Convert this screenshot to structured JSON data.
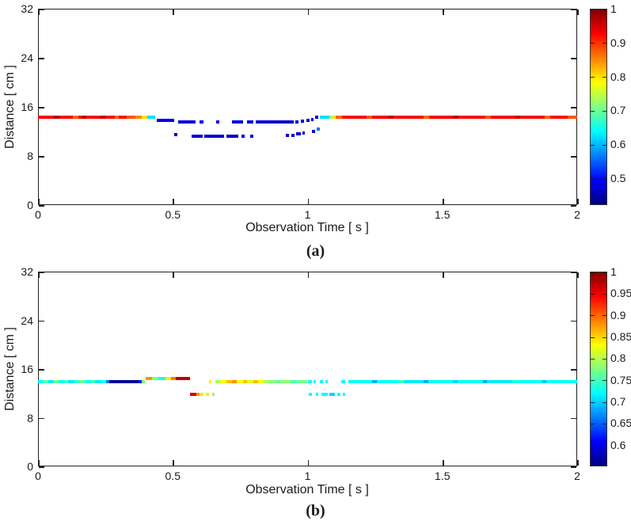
{
  "figure": {
    "background": "#ffffff",
    "axis_color": "#231f20",
    "colormap": "jet"
  },
  "chart_data": [
    {
      "panel": "a",
      "type": "scatter",
      "caption": "(a)",
      "xlabel": "Observation Time [ s ]",
      "ylabel": "Distance [ cm ]",
      "xlim": [
        0,
        2
      ],
      "ylim": [
        0,
        32
      ],
      "xticks": [
        0,
        0.5,
        1,
        1.5,
        2
      ],
      "yticks": [
        0,
        8,
        16,
        24,
        32
      ],
      "colorbar": {
        "min": 0.42,
        "max": 1.0,
        "ticks": [
          1,
          0.9,
          0.8,
          0.7,
          0.6,
          0.5
        ]
      },
      "points_format": [
        "t_start_s",
        "t_end_s",
        "distance_cm",
        "value"
      ],
      "points": [
        [
          0.0,
          0.06,
          14.5,
          0.93
        ],
        [
          0.06,
          0.08,
          14.5,
          0.97
        ],
        [
          0.08,
          0.13,
          14.5,
          0.92
        ],
        [
          0.13,
          0.15,
          14.5,
          0.87
        ],
        [
          0.15,
          0.165,
          14.5,
          0.93
        ],
        [
          0.165,
          0.18,
          14.5,
          0.97
        ],
        [
          0.18,
          0.23,
          14.5,
          0.92
        ],
        [
          0.23,
          0.25,
          14.5,
          0.96
        ],
        [
          0.25,
          0.285,
          14.5,
          0.92
        ],
        [
          0.285,
          0.3,
          14.5,
          0.87
        ],
        [
          0.3,
          0.33,
          14.5,
          0.92
        ],
        [
          0.33,
          0.36,
          14.5,
          0.88
        ],
        [
          0.36,
          0.385,
          14.5,
          0.85
        ],
        [
          0.385,
          0.405,
          14.5,
          0.8
        ],
        [
          0.405,
          0.435,
          14.5,
          0.62
        ],
        [
          0.44,
          0.505,
          13.9,
          0.48
        ],
        [
          0.52,
          0.585,
          13.7,
          0.47
        ],
        [
          0.598,
          0.615,
          13.7,
          0.47
        ],
        [
          0.66,
          0.672,
          13.7,
          0.48
        ],
        [
          0.72,
          0.762,
          13.7,
          0.47
        ],
        [
          0.775,
          0.8,
          13.7,
          0.47
        ],
        [
          0.808,
          0.872,
          13.7,
          0.47
        ],
        [
          0.872,
          0.948,
          13.7,
          0.46
        ],
        [
          0.955,
          0.966,
          13.7,
          0.47
        ],
        [
          0.975,
          0.987,
          13.8,
          0.47
        ],
        [
          0.995,
          1.006,
          13.9,
          0.48
        ],
        [
          1.012,
          1.023,
          14.1,
          0.47
        ],
        [
          1.028,
          1.04,
          14.4,
          0.48
        ],
        [
          1.045,
          1.08,
          14.5,
          0.62
        ],
        [
          1.08,
          1.093,
          14.5,
          0.72
        ],
        [
          1.093,
          1.104,
          14.5,
          0.8
        ],
        [
          1.104,
          1.128,
          14.5,
          0.87
        ],
        [
          1.128,
          1.22,
          14.5,
          0.92
        ],
        [
          1.22,
          1.24,
          14.5,
          0.88
        ],
        [
          1.24,
          1.3,
          14.5,
          0.93
        ],
        [
          1.3,
          1.32,
          14.5,
          0.97
        ],
        [
          1.32,
          1.43,
          14.5,
          0.92
        ],
        [
          1.43,
          1.45,
          14.5,
          0.87
        ],
        [
          1.45,
          1.54,
          14.5,
          0.93
        ],
        [
          1.54,
          1.56,
          14.5,
          0.97
        ],
        [
          1.56,
          1.66,
          14.5,
          0.92
        ],
        [
          1.66,
          1.68,
          14.5,
          0.88
        ],
        [
          1.68,
          1.77,
          14.5,
          0.93
        ],
        [
          1.77,
          1.79,
          14.5,
          0.96
        ],
        [
          1.79,
          1.88,
          14.5,
          0.92
        ],
        [
          1.88,
          1.9,
          14.5,
          0.87
        ],
        [
          1.9,
          1.965,
          14.5,
          0.92
        ],
        [
          1.965,
          2.0,
          14.5,
          0.88
        ],
        [
          0.505,
          0.516,
          11.6,
          0.47
        ],
        [
          0.57,
          0.61,
          11.4,
          0.46
        ],
        [
          0.617,
          0.69,
          11.4,
          0.46
        ],
        [
          0.7,
          0.742,
          11.4,
          0.46
        ],
        [
          0.755,
          0.766,
          11.4,
          0.47
        ],
        [
          0.788,
          0.799,
          11.4,
          0.47
        ],
        [
          0.92,
          0.931,
          11.5,
          0.47
        ],
        [
          0.94,
          0.951,
          11.5,
          0.47
        ],
        [
          0.957,
          0.975,
          11.7,
          0.47
        ],
        [
          0.98,
          0.991,
          11.9,
          0.47
        ],
        [
          1.016,
          1.027,
          12.1,
          0.48
        ],
        [
          1.035,
          1.046,
          12.5,
          0.56
        ]
      ]
    },
    {
      "panel": "b",
      "type": "scatter",
      "caption": "(b)",
      "xlabel": "Observation Time [ s ]",
      "ylabel": "Distance [ cm ]",
      "xlim": [
        0,
        2
      ],
      "ylim": [
        0,
        32
      ],
      "xticks": [
        0,
        0.5,
        1,
        1.5,
        2
      ],
      "yticks": [
        0,
        8,
        16,
        24,
        32
      ],
      "colorbar": {
        "min": 0.55,
        "max": 1.0,
        "ticks": [
          1,
          0.95,
          0.9,
          0.85,
          0.8,
          0.75,
          0.7,
          0.65,
          0.6
        ]
      },
      "points_format": [
        "t_start_s",
        "t_end_s",
        "distance_cm",
        "value"
      ],
      "points": [
        [
          0.0,
          0.022,
          14.1,
          0.72
        ],
        [
          0.022,
          0.037,
          14.1,
          0.76
        ],
        [
          0.037,
          0.06,
          14.1,
          0.71
        ],
        [
          0.06,
          0.076,
          14.1,
          0.77
        ],
        [
          0.076,
          0.1,
          14.1,
          0.72
        ],
        [
          0.1,
          0.112,
          14.1,
          0.76
        ],
        [
          0.112,
          0.136,
          14.1,
          0.71
        ],
        [
          0.136,
          0.152,
          14.1,
          0.74
        ],
        [
          0.152,
          0.172,
          14.1,
          0.77
        ],
        [
          0.172,
          0.196,
          14.1,
          0.72
        ],
        [
          0.196,
          0.212,
          14.1,
          0.75
        ],
        [
          0.212,
          0.236,
          14.1,
          0.71
        ],
        [
          0.236,
          0.252,
          14.1,
          0.73
        ],
        [
          0.252,
          0.264,
          14.1,
          0.66
        ],
        [
          0.264,
          0.372,
          14.1,
          0.56
        ],
        [
          0.372,
          0.384,
          14.1,
          0.62
        ],
        [
          0.384,
          0.396,
          14.1,
          0.78
        ],
        [
          0.4,
          0.424,
          14.6,
          0.88
        ],
        [
          0.424,
          0.446,
          14.6,
          0.77
        ],
        [
          0.446,
          0.474,
          14.6,
          0.73
        ],
        [
          0.474,
          0.494,
          14.6,
          0.84
        ],
        [
          0.494,
          0.51,
          14.6,
          0.89
        ],
        [
          0.51,
          0.565,
          14.6,
          0.97
        ],
        [
          0.565,
          0.586,
          12.0,
          0.96
        ],
        [
          0.586,
          0.6,
          12.0,
          0.88
        ],
        [
          0.6,
          0.614,
          12.0,
          0.84
        ],
        [
          0.622,
          0.633,
          12.0,
          0.84
        ],
        [
          0.645,
          0.656,
          12.0,
          0.78
        ],
        [
          0.633,
          0.644,
          14.1,
          0.84
        ],
        [
          0.658,
          0.676,
          14.1,
          0.79
        ],
        [
          0.676,
          0.7,
          14.1,
          0.83
        ],
        [
          0.7,
          0.72,
          14.1,
          0.86
        ],
        [
          0.72,
          0.736,
          14.1,
          0.88
        ],
        [
          0.736,
          0.76,
          14.1,
          0.83
        ],
        [
          0.76,
          0.776,
          14.1,
          0.86
        ],
        [
          0.776,
          0.8,
          14.1,
          0.82
        ],
        [
          0.8,
          0.816,
          14.1,
          0.86
        ],
        [
          0.816,
          0.836,
          14.1,
          0.83
        ],
        [
          0.836,
          0.852,
          14.1,
          0.79
        ],
        [
          0.852,
          0.88,
          14.1,
          0.78
        ],
        [
          0.88,
          0.9,
          14.1,
          0.76
        ],
        [
          0.9,
          0.936,
          14.1,
          0.78
        ],
        [
          0.936,
          0.96,
          14.1,
          0.75
        ],
        [
          0.96,
          1.0,
          14.1,
          0.77
        ],
        [
          1.0,
          1.016,
          14.1,
          0.72
        ],
        [
          1.022,
          1.032,
          14.1,
          0.72
        ],
        [
          1.046,
          1.056,
          14.1,
          0.72
        ],
        [
          1.066,
          1.076,
          14.1,
          0.72
        ],
        [
          1.124,
          1.14,
          14.1,
          0.72
        ],
        [
          1.15,
          1.24,
          14.1,
          0.72
        ],
        [
          1.24,
          1.258,
          14.1,
          0.68
        ],
        [
          1.258,
          1.34,
          14.1,
          0.72
        ],
        [
          1.34,
          1.356,
          14.1,
          0.75
        ],
        [
          1.356,
          1.43,
          14.1,
          0.71
        ],
        [
          1.43,
          1.448,
          14.1,
          0.68
        ],
        [
          1.448,
          1.54,
          14.1,
          0.72
        ],
        [
          1.54,
          1.556,
          14.1,
          0.7
        ],
        [
          1.556,
          1.65,
          14.1,
          0.72
        ],
        [
          1.65,
          1.666,
          14.1,
          0.68
        ],
        [
          1.666,
          1.76,
          14.1,
          0.71
        ],
        [
          1.76,
          1.776,
          14.1,
          0.73
        ],
        [
          1.776,
          1.87,
          14.1,
          0.72
        ],
        [
          1.87,
          1.886,
          14.1,
          0.69
        ],
        [
          1.886,
          2.0,
          14.1,
          0.72
        ],
        [
          1.005,
          1.016,
          12.0,
          0.72
        ],
        [
          1.03,
          1.041,
          12.0,
          0.72
        ],
        [
          1.052,
          1.076,
          12.0,
          0.72
        ],
        [
          1.082,
          1.1,
          12.0,
          0.7
        ],
        [
          1.11,
          1.121,
          12.0,
          0.72
        ],
        [
          1.13,
          1.141,
          12.0,
          0.72
        ]
      ]
    }
  ]
}
